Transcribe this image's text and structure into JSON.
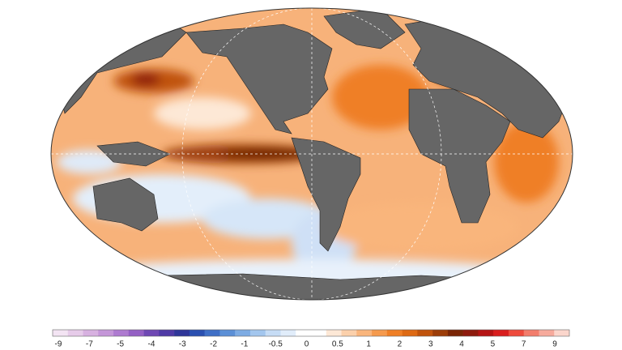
{
  "colorbar": {
    "ticks": [
      -9,
      -7,
      -5,
      -4,
      -3,
      -2,
      -1,
      -0.5,
      0,
      0.5,
      1,
      2,
      3,
      4,
      5,
      7,
      9
    ],
    "colors": [
      "#f3e4f3",
      "#e6cbe9",
      "#d7b1e0",
      "#c496d8",
      "#ae7bd0",
      "#9460c4",
      "#6f48b4",
      "#4f3aa6",
      "#2f3699",
      "#2a4fb0",
      "#3f6fc6",
      "#5b8fd6",
      "#7dabe3",
      "#a3c6ee",
      "#c6dcf5",
      "#e1edfa",
      "#ffffff",
      "#ffffff",
      "#fde8d6",
      "#fbd0ab",
      "#f9b57c",
      "#f59a4d",
      "#ef7f26",
      "#de6a14",
      "#c0530c",
      "#9c3d08",
      "#7a2505",
      "#8e1a0d",
      "#b51414",
      "#d91e1e",
      "#ee4a3c",
      "#f27d6c",
      "#f6aa9c",
      "#fbd6cc"
    ]
  }
}
